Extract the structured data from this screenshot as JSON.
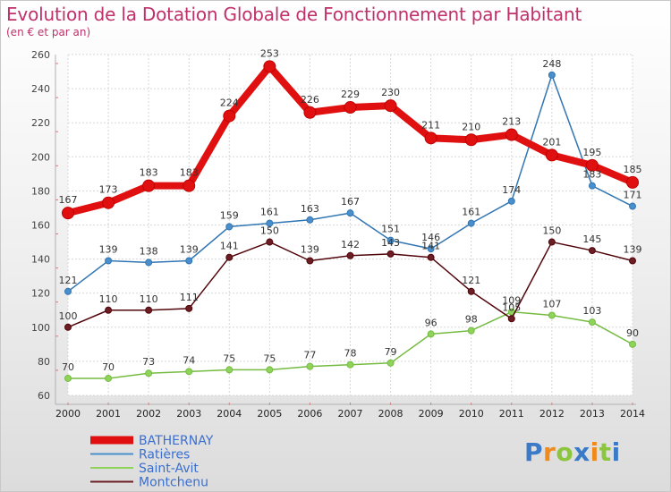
{
  "chart_data": {
    "type": "line",
    "title": "Evolution de la Dotation Globale de Fonctionnement par Habitant",
    "subtitle": "(en € et par an)",
    "x": [
      "2000",
      "2001",
      "2002",
      "2003",
      "2004",
      "2005",
      "2006",
      "2007",
      "2008",
      "2009",
      "2010",
      "2011",
      "2012",
      "2013",
      "2014"
    ],
    "ylim": [
      60,
      260
    ],
    "yticks": [
      60,
      80,
      100,
      120,
      140,
      160,
      180,
      200,
      220,
      240,
      260
    ],
    "grid": true,
    "legend_position": "bottom-left",
    "series": [
      {
        "name": "BATHERNAY",
        "color": "#e01010",
        "values": [
          167,
          173,
          183,
          183,
          224,
          253,
          226,
          229,
          230,
          211,
          210,
          213,
          201,
          195,
          185
        ]
      },
      {
        "name": "Ratières",
        "color": "#4a8fcc",
        "values": [
          121,
          139,
          138,
          139,
          159,
          161,
          163,
          167,
          151,
          146,
          161,
          174,
          248,
          183,
          171
        ]
      },
      {
        "name": "Saint-Avit",
        "color": "#8ed45a",
        "values": [
          70,
          70,
          73,
          74,
          75,
          75,
          77,
          78,
          79,
          96,
          98,
          109,
          107,
          103,
          90
        ]
      },
      {
        "name": "Montchenu",
        "color": "#6b1f24",
        "values": [
          100,
          110,
          110,
          111,
          141,
          150,
          139,
          142,
          143,
          141,
          121,
          105,
          150,
          145,
          139
        ]
      }
    ]
  },
  "logo": {
    "letters": [
      "P",
      "r",
      "o",
      "x",
      "i",
      "t",
      "i"
    ],
    "colors": [
      "#3a7ac8",
      "#f08a1c",
      "#8cc63e",
      "#3a7ac8",
      "#f08a1c",
      "#8cc63e",
      "#3a7ac8"
    ]
  }
}
